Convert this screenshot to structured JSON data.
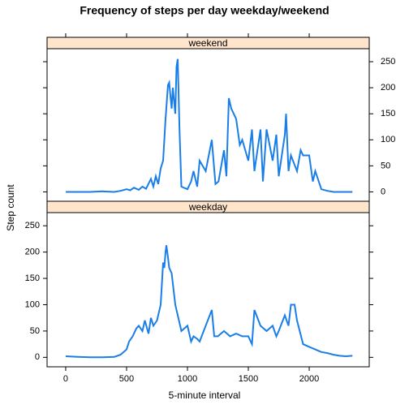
{
  "chart_data": {
    "type": "line",
    "title": "Frequency of steps per day weekday/weekend",
    "xlabel": "5-minute interval",
    "ylabel": "Step count",
    "xlim": [
      -153,
      2493
    ],
    "ylim": [
      -18,
      275
    ],
    "xticks": [
      0,
      500,
      1000,
      1500,
      2000
    ],
    "yticks": [
      0,
      50,
      100,
      150,
      200,
      250
    ],
    "color": "#1a7ee8",
    "strip_color": "#ffe5cc",
    "panels": [
      {
        "name": "weekend",
        "x": [
          0,
          100,
          200,
          300,
          400,
          450,
          500,
          530,
          560,
          600,
          630,
          660,
          700,
          720,
          740,
          760,
          780,
          800,
          820,
          840,
          850,
          870,
          880,
          900,
          910,
          920,
          935,
          950,
          1000,
          1030,
          1050,
          1080,
          1100,
          1150,
          1200,
          1230,
          1255,
          1300,
          1320,
          1340,
          1360,
          1400,
          1430,
          1450,
          1500,
          1530,
          1550,
          1600,
          1620,
          1650,
          1700,
          1730,
          1750,
          1800,
          1810,
          1830,
          1850,
          1900,
          1930,
          1950,
          2000,
          2030,
          2050,
          2100,
          2150,
          2200,
          2300,
          2355
        ],
        "values": [
          0,
          0,
          0,
          1,
          0,
          2,
          5,
          3,
          8,
          4,
          10,
          6,
          25,
          10,
          30,
          15,
          45,
          60,
          140,
          205,
          210,
          160,
          200,
          150,
          240,
          255,
          120,
          10,
          5,
          20,
          40,
          10,
          60,
          40,
          100,
          15,
          20,
          80,
          30,
          180,
          160,
          140,
          90,
          100,
          60,
          120,
          40,
          120,
          20,
          120,
          60,
          110,
          30,
          110,
          150,
          40,
          70,
          40,
          80,
          70,
          70,
          20,
          40,
          5,
          2,
          0,
          0,
          0
        ]
      },
      {
        "name": "weekday",
        "x": [
          0,
          100,
          200,
          300,
          400,
          450,
          500,
          520,
          550,
          580,
          600,
          630,
          650,
          680,
          700,
          720,
          750,
          780,
          800,
          810,
          820,
          827,
          840,
          850,
          870,
          900,
          930,
          950,
          1000,
          1030,
          1050,
          1080,
          1100,
          1150,
          1200,
          1220,
          1250,
          1300,
          1350,
          1400,
          1450,
          1500,
          1530,
          1550,
          1600,
          1650,
          1700,
          1730,
          1750,
          1800,
          1830,
          1850,
          1880,
          1900,
          1950,
          2000,
          2050,
          2100,
          2150,
          2200,
          2250,
          2300,
          2355
        ],
        "values": [
          2,
          1,
          0,
          0,
          1,
          5,
          15,
          30,
          40,
          55,
          60,
          50,
          70,
          45,
          75,
          60,
          70,
          100,
          180,
          170,
          200,
          213,
          190,
          170,
          160,
          100,
          70,
          50,
          60,
          30,
          40,
          35,
          30,
          60,
          90,
          40,
          40,
          50,
          40,
          45,
          40,
          40,
          25,
          90,
          60,
          50,
          60,
          40,
          50,
          80,
          60,
          100,
          100,
          70,
          25,
          20,
          15,
          10,
          8,
          5,
          3,
          2,
          3
        ]
      }
    ]
  }
}
